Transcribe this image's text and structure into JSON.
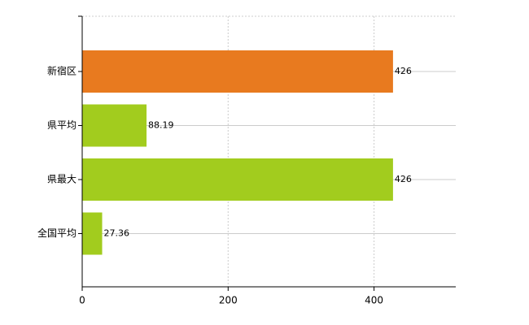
{
  "chart_data": {
    "type": "bar",
    "orientation": "horizontal",
    "categories": [
      "新宿区",
      "県平均",
      "県最大",
      "全国平均"
    ],
    "values": [
      426,
      88.19,
      426,
      27.36
    ],
    "colors": [
      "#e87a1f",
      "#a2cc1e",
      "#a2cc1e",
      "#a2cc1e"
    ],
    "xlim": [
      0,
      512
    ],
    "xticks": [
      0,
      200,
      400
    ],
    "grid": true
  }
}
